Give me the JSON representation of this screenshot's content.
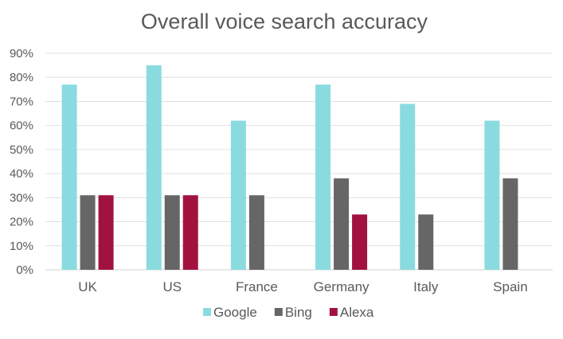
{
  "chart_data": {
    "type": "bar",
    "title": "Overall voice search accuracy",
    "xlabel": "",
    "ylabel": "",
    "categories": [
      "UK",
      "US",
      "France",
      "Germany",
      "Italy",
      "Spain"
    ],
    "series": [
      {
        "name": "Google",
        "color": "#8ADBDF",
        "values": [
          77,
          85,
          62,
          77,
          69,
          62
        ]
      },
      {
        "name": "Bing",
        "color": "#666666",
        "values": [
          31,
          31,
          31,
          38,
          23,
          38
        ]
      },
      {
        "name": "Alexa",
        "color": "#A2123F",
        "values": [
          31,
          31,
          0,
          23,
          0,
          0
        ]
      }
    ],
    "ylim": [
      0,
      90
    ],
    "y_ticks": [
      "0%",
      "10%",
      "20%",
      "30%",
      "40%",
      "50%",
      "60%",
      "70%",
      "80%",
      "90%"
    ],
    "grid": true,
    "legend_position": "bottom"
  }
}
